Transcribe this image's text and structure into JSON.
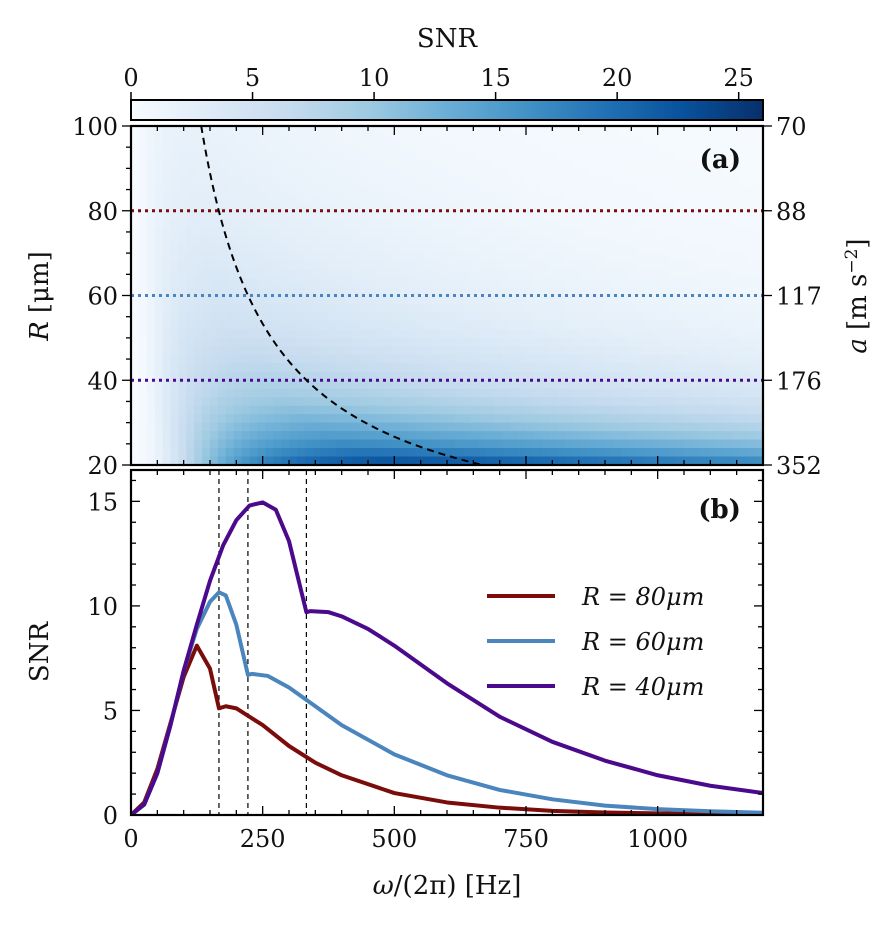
{
  "chart_data": [
    {
      "type": "heatmap",
      "panel_label": "(a)",
      "colorbar": {
        "label": "SNR",
        "ticks": [
          "0",
          "5",
          "10",
          "15",
          "20",
          "25"
        ],
        "tick_values": [
          0,
          5,
          10,
          15,
          20,
          25
        ],
        "range": [
          0,
          26
        ],
        "colormap": [
          "#f7fbff",
          "#deebf7",
          "#c6dbef",
          "#9ecae1",
          "#6baed6",
          "#4292c6",
          "#2171b5",
          "#08519c",
          "#08306b"
        ]
      },
      "ylabel": "R [μm]",
      "ylabel_parts": {
        "symbol": "R",
        "unit": "[μm]"
      },
      "ylim": [
        20,
        100
      ],
      "yticks": [
        "20",
        "40",
        "60",
        "80",
        "100"
      ],
      "ytick_values": [
        20,
        40,
        60,
        80,
        100
      ],
      "right_axis": {
        "label": "a [m s⁻²]",
        "label_parts": {
          "symbol": "a",
          "unit_open": "[m s",
          "exponent": "−2",
          "unit_close": "]"
        },
        "ticks": [
          "70",
          "88",
          "117",
          "176",
          "352"
        ],
        "tick_positions_R": [
          100,
          80,
          60,
          40,
          20
        ]
      },
      "xlim": [
        0,
        1200
      ],
      "reference_lines": [
        {
          "R": 80,
          "color": "#7b0c0c",
          "style": "dotted"
        },
        {
          "R": 60,
          "color": "#4a86bd",
          "style": "dotted"
        },
        {
          "R": 40,
          "color": "#4b0a8c",
          "style": "dotted"
        }
      ],
      "dashed_curve": {
        "description": "f*R = const",
        "points": [
          [
            133,
            100
          ],
          [
            167,
            80
          ],
          [
            222,
            60
          ],
          [
            333,
            40
          ],
          [
            660,
            20
          ]
        ],
        "color": "#000000"
      }
    },
    {
      "type": "line",
      "panel_label": "(b)",
      "xlabel": "ω/(2π) [Hz]",
      "xlabel_parts": {
        "symbol": "ω",
        "rest": "/(2π) [Hz]"
      },
      "ylabel": "SNR",
      "xlim": [
        0,
        1200
      ],
      "ylim": [
        0,
        16.5
      ],
      "xticks": [
        "0",
        "250",
        "500",
        "750",
        "1000"
      ],
      "xtick_values": [
        0,
        250,
        500,
        750,
        1000
      ],
      "yticks": [
        "0",
        "5",
        "10",
        "15"
      ],
      "ytick_values": [
        0,
        5,
        10,
        15
      ],
      "vlines": [
        167,
        222,
        333
      ],
      "legend_location": "center-right",
      "series": [
        {
          "name": "R = 80μm",
          "legend": "R = 80μm",
          "color": "#7b0c0c",
          "x": [
            0,
            25,
            50,
            75,
            100,
            125,
            150,
            167,
            180,
            200,
            250,
            300,
            350,
            400,
            500,
            600,
            700,
            800,
            900,
            1000,
            1100,
            1200
          ],
          "y": [
            0,
            0.6,
            2.2,
            4.4,
            6.6,
            8.1,
            7.0,
            5.1,
            5.2,
            5.1,
            4.3,
            3.3,
            2.5,
            1.9,
            1.05,
            0.6,
            0.35,
            0.2,
            0.12,
            0.08,
            0.05,
            0.03
          ]
        },
        {
          "name": "R = 60μm",
          "legend": "R = 60μm",
          "color": "#4a86bd",
          "x": [
            0,
            25,
            50,
            75,
            100,
            125,
            150,
            167,
            180,
            200,
            222,
            230,
            260,
            300,
            350,
            400,
            500,
            600,
            700,
            800,
            900,
            1000,
            1100,
            1200
          ],
          "y": [
            0,
            0.5,
            2.0,
            4.3,
            6.9,
            8.9,
            10.2,
            10.65,
            10.5,
            9.1,
            6.7,
            6.75,
            6.65,
            6.1,
            5.2,
            4.3,
            2.9,
            1.9,
            1.2,
            0.75,
            0.45,
            0.28,
            0.18,
            0.11
          ]
        },
        {
          "name": "R = 40μm",
          "legend": "R = 40μm",
          "color": "#4b0a8c",
          "x": [
            0,
            25,
            50,
            75,
            100,
            125,
            150,
            175,
            200,
            225,
            250,
            275,
            300,
            333,
            340,
            375,
            400,
            450,
            500,
            600,
            700,
            800,
            900,
            1000,
            1100,
            1200
          ],
          "y": [
            0,
            0.5,
            2.0,
            4.3,
            6.9,
            9.1,
            11.2,
            12.9,
            14.1,
            14.8,
            14.95,
            14.6,
            13.1,
            9.7,
            9.75,
            9.7,
            9.5,
            8.9,
            8.1,
            6.3,
            4.7,
            3.5,
            2.6,
            1.9,
            1.4,
            1.05
          ]
        }
      ]
    }
  ]
}
